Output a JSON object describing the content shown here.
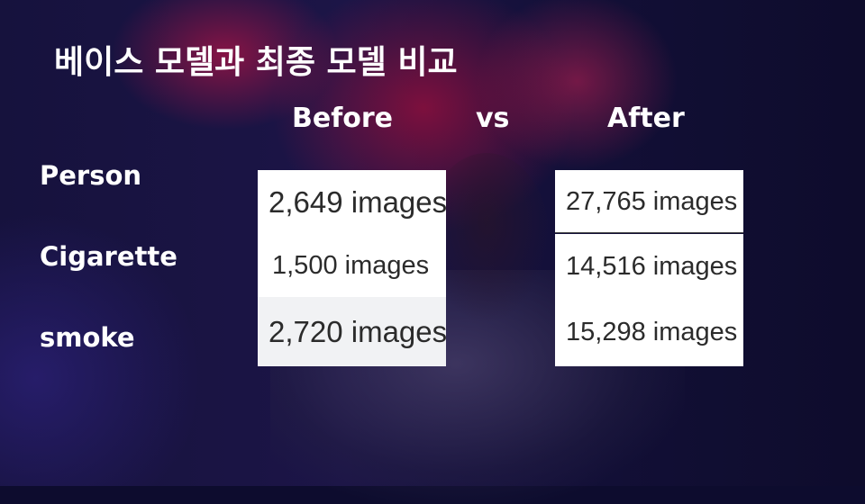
{
  "title": "베이스 모델과 최종 모델 비교",
  "headers": {
    "before": "Before",
    "vs": "vs",
    "after": "After"
  },
  "rows": [
    {
      "label": "Person",
      "before": "2,649 images",
      "after": "27,765 images"
    },
    {
      "label": "Cigarette",
      "before": "1,500 images",
      "after": "14,516 images"
    },
    {
      "label": "smoke",
      "before": "2,720 images",
      "after": "15,298 images"
    }
  ],
  "colors": {
    "background": "#16123d",
    "smoke": "#a8144a",
    "text": "#ffffff",
    "panel": "#ffffff"
  }
}
